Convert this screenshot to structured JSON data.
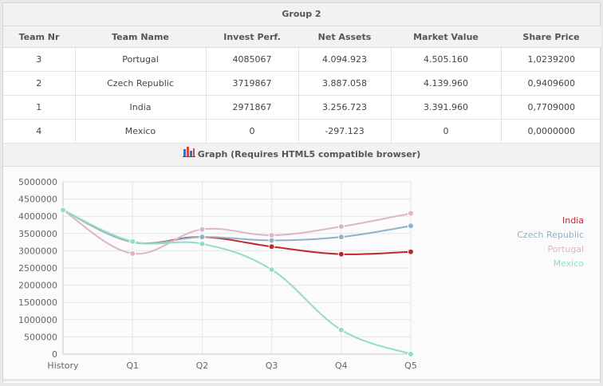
{
  "group": {
    "title": "Group 2"
  },
  "table": {
    "headers": [
      "Team Nr",
      "Team Name",
      "Invest Perf.",
      "Net Assets",
      "Market Value",
      "Share Price"
    ],
    "rows": [
      [
        "3",
        "Portugal",
        "4085067",
        "4.094.923",
        "4.505.160",
        "1,0239200"
      ],
      [
        "2",
        "Czech Republic",
        "3719867",
        "3.887.058",
        "4.139.960",
        "0,9409600"
      ],
      [
        "1",
        "India",
        "2971867",
        "3.256.723",
        "3.391.960",
        "0,7709000"
      ],
      [
        "4",
        "Mexico",
        "0",
        "-297.123",
        "0",
        "0,0000000"
      ]
    ]
  },
  "graph": {
    "title": "Graph (Requires HTML5 compatible browser)",
    "icon": "bar-chart-icon"
  },
  "chart_data": {
    "type": "line",
    "categories": [
      "History",
      "Q1",
      "Q2",
      "Q3",
      "Q4",
      "Q5"
    ],
    "ylim": [
      0,
      5000000
    ],
    "yticks": [
      0,
      500000,
      1000000,
      1500000,
      2000000,
      2500000,
      3000000,
      3500000,
      4000000,
      4500000,
      5000000
    ],
    "grid": true,
    "legend_position": "right",
    "series": [
      {
        "name": "India",
        "color": "#c0282d",
        "values": [
          4180000,
          3250000,
          3400000,
          3120000,
          2900000,
          2970000
        ]
      },
      {
        "name": "Czech Republic",
        "color": "#8fb3c6",
        "values": [
          4180000,
          3250000,
          3400000,
          3300000,
          3400000,
          3720000
        ]
      },
      {
        "name": "Portugal",
        "color": "#dcb6c8",
        "values": [
          4180000,
          2920000,
          3620000,
          3450000,
          3700000,
          4085000
        ]
      },
      {
        "name": "Mexico",
        "color": "#93dcc8",
        "values": [
          4180000,
          3270000,
          3200000,
          2450000,
          700000,
          0
        ]
      }
    ]
  }
}
